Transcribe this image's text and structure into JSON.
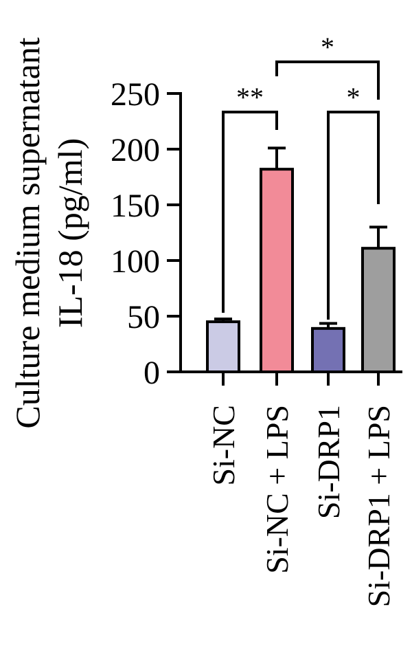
{
  "chart_data": {
    "type": "bar",
    "title": "",
    "ylabel_line1": "Culture medium supernatant",
    "ylabel_line2": "IL-18 (pg/ml)",
    "xlabel": "",
    "ylim": [
      0,
      250
    ],
    "yticks": [
      0,
      50,
      100,
      150,
      200,
      250
    ],
    "grid": false,
    "legend": "none",
    "categories": [
      "Si-NC",
      "Si-NC + LPS",
      "Si-DRP1",
      "Si-DRP1 + LPS"
    ],
    "values": [
      45,
      182,
      39,
      111
    ],
    "errors": [
      2.5,
      19,
      4.5,
      19
    ],
    "colors": [
      "#cbcbe5",
      "#f28b98",
      "#7471b3",
      "#9e9e9e"
    ],
    "significance": [
      {
        "from": 0,
        "to": 1,
        "label": "**"
      },
      {
        "from": 2,
        "to": 3,
        "label": "*"
      },
      {
        "from": 1,
        "to": 3,
        "label": "*"
      }
    ]
  }
}
